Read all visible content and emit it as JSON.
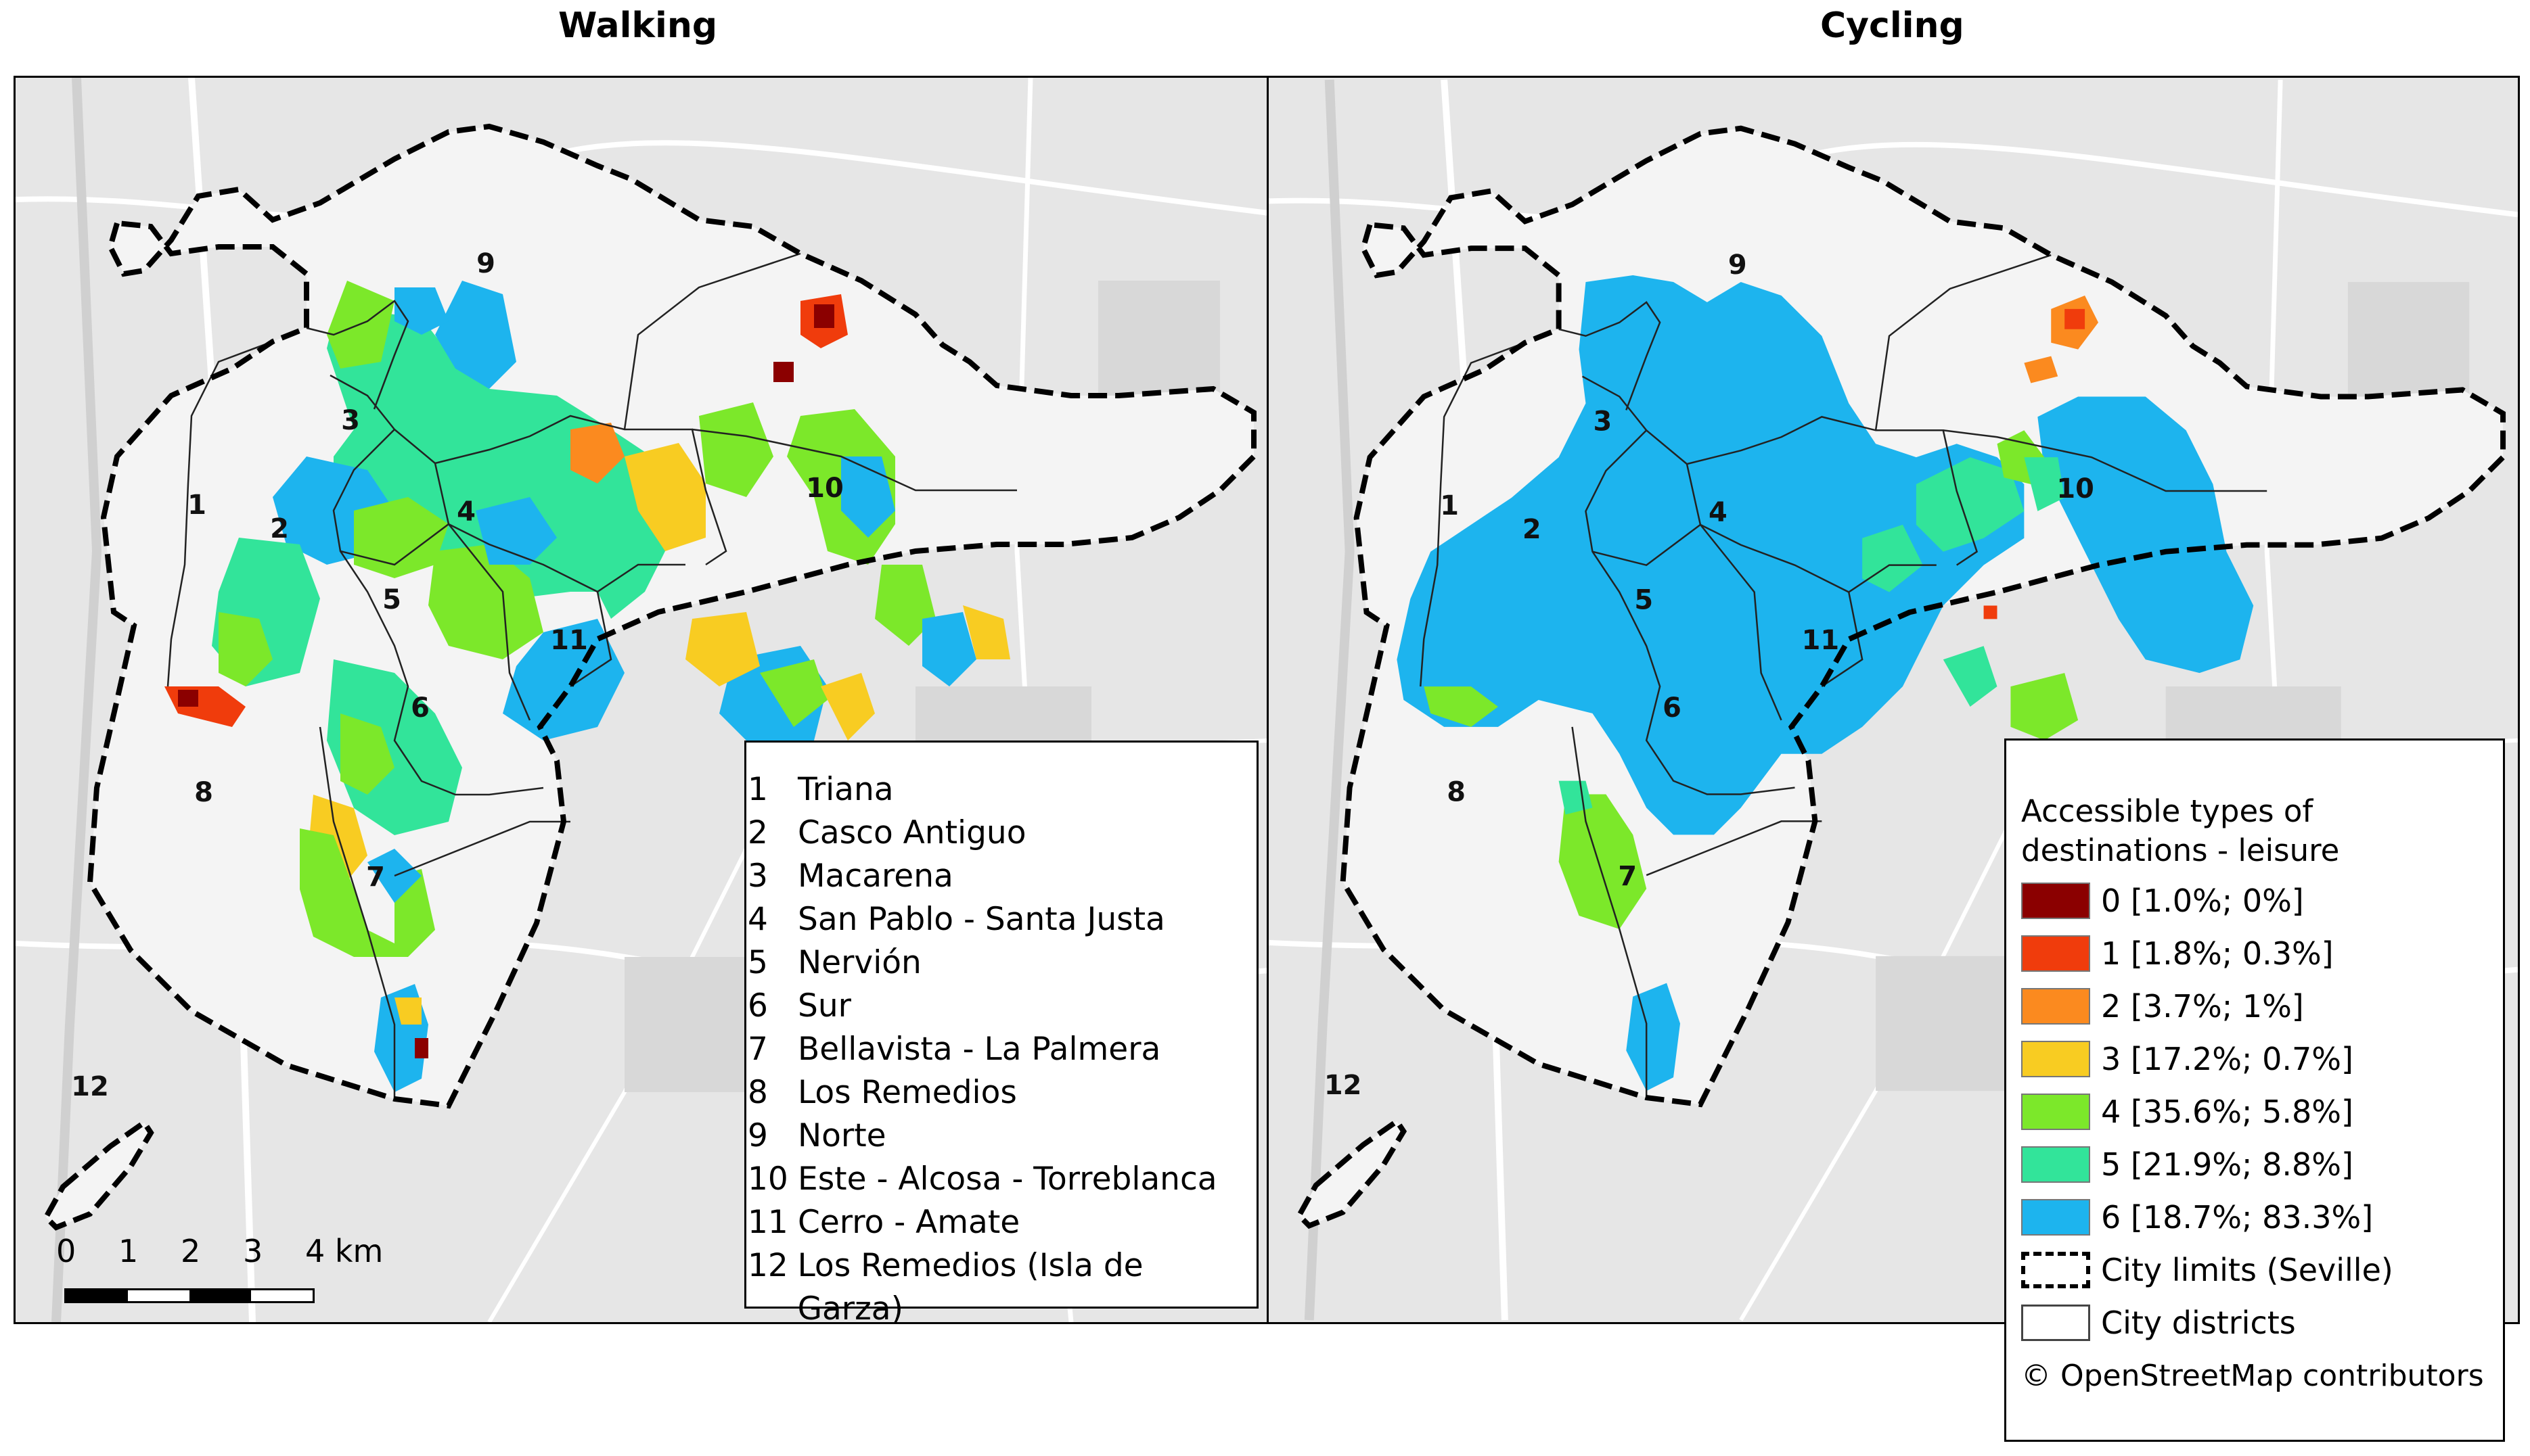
{
  "panels": [
    {
      "title": "Walking"
    },
    {
      "title": "Cycling"
    }
  ],
  "district_numbers": [
    "1",
    "2",
    "3",
    "4",
    "5",
    "6",
    "7",
    "8",
    "9",
    "10",
    "11",
    "12"
  ],
  "districts": [
    {
      "num": "1",
      "name": "Triana"
    },
    {
      "num": "2",
      "name": "Casco Antiguo"
    },
    {
      "num": "3",
      "name": "Macarena"
    },
    {
      "num": "4",
      "name": "San Pablo - Santa Justa"
    },
    {
      "num": "5",
      "name": "Nervión"
    },
    {
      "num": "6",
      "name": "Sur"
    },
    {
      "num": "7",
      "name": "Bellavista - La Palmera"
    },
    {
      "num": "8",
      "name": "Los Remedios"
    },
    {
      "num": "9",
      "name": "Norte"
    },
    {
      "num": "10",
      "name": "Este - Alcosa - Torreblanca"
    },
    {
      "num": "11",
      "name": "Cerro - Amate"
    },
    {
      "num": "12",
      "name": "Los Remedios (Isla de Garza)"
    }
  ],
  "scale_bar": {
    "labels": [
      "0",
      "1",
      "2",
      "3",
      "4 km"
    ]
  },
  "legend": {
    "title_line1": "Accessible types of",
    "title_line2": "destinations - leisure",
    "classes": [
      {
        "label": "0 [1.0%; 0%]",
        "color": "#8b0000"
      },
      {
        "label": "1 [1.8%; 0.3%]",
        "color": "#f03c0c"
      },
      {
        "label": "2 [3.7%; 1%]",
        "color": "#fb8a1f"
      },
      {
        "label": "3 [17.2%; 0.7%]",
        "color": "#f8cc22"
      },
      {
        "label": "4 [35.6%; 5.8%]",
        "color": "#7ce82a"
      },
      {
        "label": "5 [21.9%; 8.8%]",
        "color": "#32e49a"
      },
      {
        "label": "6 [18.7%; 83.3%]",
        "color": "#1db4ee"
      }
    ],
    "city_limits_label": "City limits (Seville)",
    "city_districts_label": "City districts",
    "attribution": "© OpenStreetMap contributors"
  }
}
